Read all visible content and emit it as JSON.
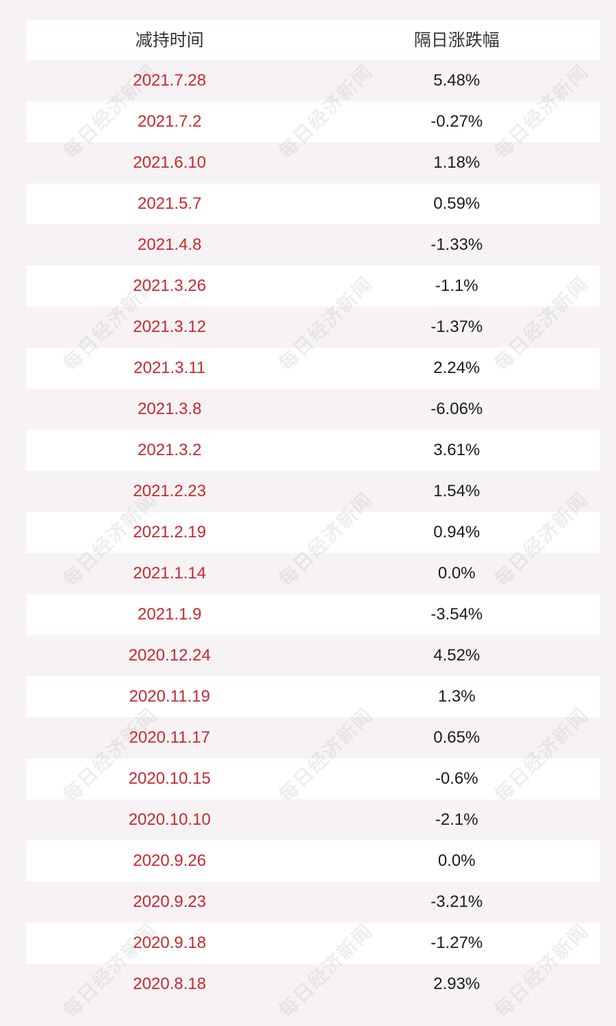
{
  "table": {
    "headers": [
      "减持时间",
      "隔日涨跌幅"
    ],
    "rows": [
      {
        "date": "2021.7.28",
        "change": "5.48%"
      },
      {
        "date": "2021.7.2",
        "change": "-0.27%"
      },
      {
        "date": "2021.6.10",
        "change": "1.18%"
      },
      {
        "date": "2021.5.7",
        "change": "0.59%"
      },
      {
        "date": "2021.4.8",
        "change": "-1.33%"
      },
      {
        "date": "2021.3.26",
        "change": "-1.1%"
      },
      {
        "date": "2021.3.12",
        "change": "-1.37%"
      },
      {
        "date": "2021.3.11",
        "change": "2.24%"
      },
      {
        "date": "2021.3.8",
        "change": "-6.06%"
      },
      {
        "date": "2021.3.2",
        "change": "3.61%"
      },
      {
        "date": "2021.2.23",
        "change": "1.54%"
      },
      {
        "date": "2021.2.19",
        "change": "0.94%"
      },
      {
        "date": "2021.1.14",
        "change": "0.0%"
      },
      {
        "date": "2021.1.9",
        "change": "-3.54%"
      },
      {
        "date": "2020.12.24",
        "change": "4.52%"
      },
      {
        "date": "2020.11.19",
        "change": "1.3%"
      },
      {
        "date": "2020.11.17",
        "change": "0.65%"
      },
      {
        "date": "2020.10.15",
        "change": "-0.6%"
      },
      {
        "date": "2020.10.10",
        "change": "-2.1%"
      },
      {
        "date": "2020.9.26",
        "change": "0.0%"
      },
      {
        "date": "2020.9.23",
        "change": "-3.21%"
      },
      {
        "date": "2020.9.18",
        "change": "-1.27%"
      },
      {
        "date": "2020.8.18",
        "change": "2.93%"
      }
    ]
  },
  "watermark": {
    "text": "每日经济新闻"
  },
  "colors": {
    "date_text": "#c8272e",
    "value_text": "#1a1a1a",
    "header_text": "#333333",
    "row_white": "#ffffff",
    "row_pink": "#f7f3f4"
  }
}
